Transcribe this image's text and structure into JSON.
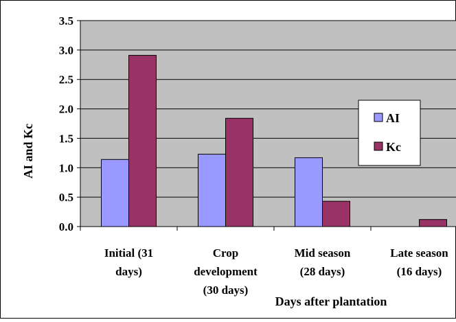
{
  "chart_data": {
    "type": "bar",
    "title": "",
    "xlabel": "Days after plantation",
    "ylabel": "AI and Kc",
    "ylim": [
      0,
      3.5
    ],
    "yticks": [
      "0.0",
      "0.5",
      "1.0",
      "1.5",
      "2.0",
      "2.5",
      "3.0",
      "3.5"
    ],
    "categories": [
      [
        "Initial (31",
        "days)"
      ],
      [
        "Crop",
        "development",
        "(30 days)"
      ],
      [
        "Mid season",
        "(28 days)"
      ],
      [
        "Late season",
        "(16 days)"
      ]
    ],
    "series": [
      {
        "name": "AI",
        "values": [
          1.14,
          1.23,
          1.17,
          null
        ]
      },
      {
        "name": "Kc",
        "values": [
          2.91,
          1.84,
          0.43,
          0.12
        ]
      }
    ],
    "grid": true,
    "legend_position": "right",
    "colors": {
      "plot_background": "#c0c0c0",
      "AI": "#9999ff",
      "Kc": "#993366",
      "gridline": "#000000"
    }
  }
}
